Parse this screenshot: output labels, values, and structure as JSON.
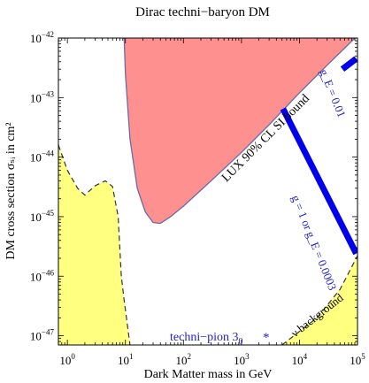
{
  "chart_data": {
    "type": "area",
    "title": "Dirac techni−baryon DM",
    "xlabel": "Dark Matter mass in GeV",
    "ylabel": "DM cross section σₛᵢ in cm²",
    "xscale": "log",
    "yscale": "log",
    "xlim": [
      0.7,
      100000
    ],
    "ylim": [
      7e-48,
      1e-42
    ],
    "x_ticks": [
      {
        "exp": "0"
      },
      {
        "exp": "1"
      },
      {
        "exp": "2"
      },
      {
        "exp": "3"
      },
      {
        "exp": "4"
      },
      {
        "exp": "5"
      }
    ],
    "y_ticks": [
      {
        "exp": "−47"
      },
      {
        "exp": "−46"
      },
      {
        "exp": "−45"
      },
      {
        "exp": "−44"
      },
      {
        "exp": "−43"
      },
      {
        "exp": "−42"
      }
    ],
    "colors": {
      "lux_fill": "#ff9090",
      "lux_edge": "#6a6aa8",
      "yellow_fill": "#ffff80",
      "blue_lines": "#0000ee",
      "text_blue": "#2222cc"
    },
    "regions": [
      {
        "name": "LUX 90% CL SI bound",
        "points": [
          [
            9.5,
            1e-42
          ],
          [
            10,
            2.5e-43
          ],
          [
            12,
            2e-44
          ],
          [
            16,
            3e-45
          ],
          [
            22,
            1.2e-45
          ],
          [
            30,
            8e-46
          ],
          [
            40,
            7.7e-46
          ],
          [
            60,
            1e-45
          ],
          [
            100,
            1.5e-45
          ],
          [
            300,
            4e-45
          ],
          [
            1000,
            1.2e-44
          ],
          [
            3000,
            3.5e-44
          ],
          [
            10000,
            1.2e-43
          ],
          [
            30000,
            3.5e-43
          ],
          [
            100000,
            1.1e-42
          ]
        ]
      },
      {
        "name": "left",
        "points": [
          [
            0.7,
            1.6e-44
          ],
          [
            1.0,
            6e-45
          ],
          [
            1.5,
            3e-45
          ],
          [
            2.0,
            2.3e-45
          ],
          [
            3.0,
            3.3e-45
          ],
          [
            4.5,
            4e-45
          ],
          [
            6.0,
            3.2e-45
          ],
          [
            7.5,
            1e-45
          ],
          [
            8.5,
            1e-46
          ],
          [
            9.5,
            4e-47
          ],
          [
            12,
            7e-48
          ]
        ]
      },
      {
        "name": "background",
        "points": [
          [
            5000,
            7e-48
          ],
          [
            20000,
            2e-47
          ],
          [
            50000,
            6e-47
          ],
          [
            100000,
            2.2e-46
          ]
        ]
      }
    ],
    "series": [
      {
        "name": "g = 1 or g_E = 0.0003",
        "points": [
          [
            5200,
            6.5e-44
          ],
          [
            95000,
            2.4e-46
          ]
        ]
      },
      {
        "name": "g_E = 0.01",
        "points": [
          [
            55000,
            3e-43
          ],
          [
            95000,
            4.5e-43
          ]
        ]
      }
    ],
    "markers": [
      {
        "name": "techni-pion",
        "x": 40000,
        "y": 3e-47
      }
    ],
    "annotations": {
      "lux_label": "LUX 90% CL SI bound",
      "line1_label": "g = 1 or g_E = 0.0003",
      "line2_label": "g_E = 0.01",
      "pion_label": "techni−pion 3",
      "pion_sub": "0",
      "pion_star": "*",
      "background_label": "ν background"
    }
  }
}
